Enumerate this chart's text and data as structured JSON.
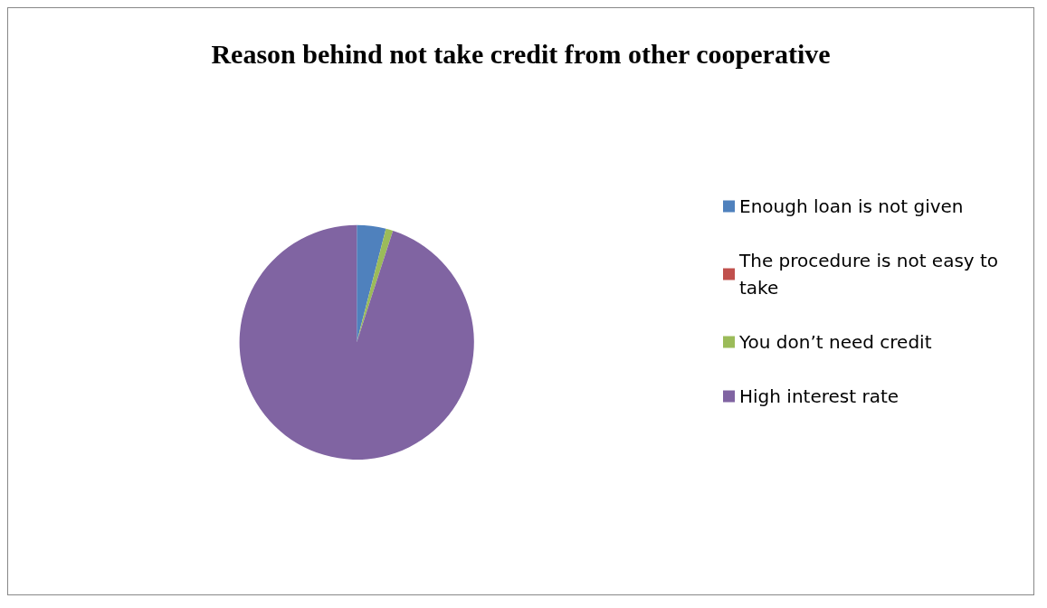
{
  "chart_data": {
    "type": "pie",
    "title": "Reason behind not take credit from other cooperative",
    "categories": [
      "Enough loan is not given",
      "The procedure is not easy to take",
      "You don’t need credit",
      "High interest rate"
    ],
    "values": [
      4,
      0,
      1,
      95
    ],
    "colors": [
      "#4f81bd",
      "#c0504d",
      "#9bbb59",
      "#8064a2"
    ],
    "legend": "right"
  }
}
